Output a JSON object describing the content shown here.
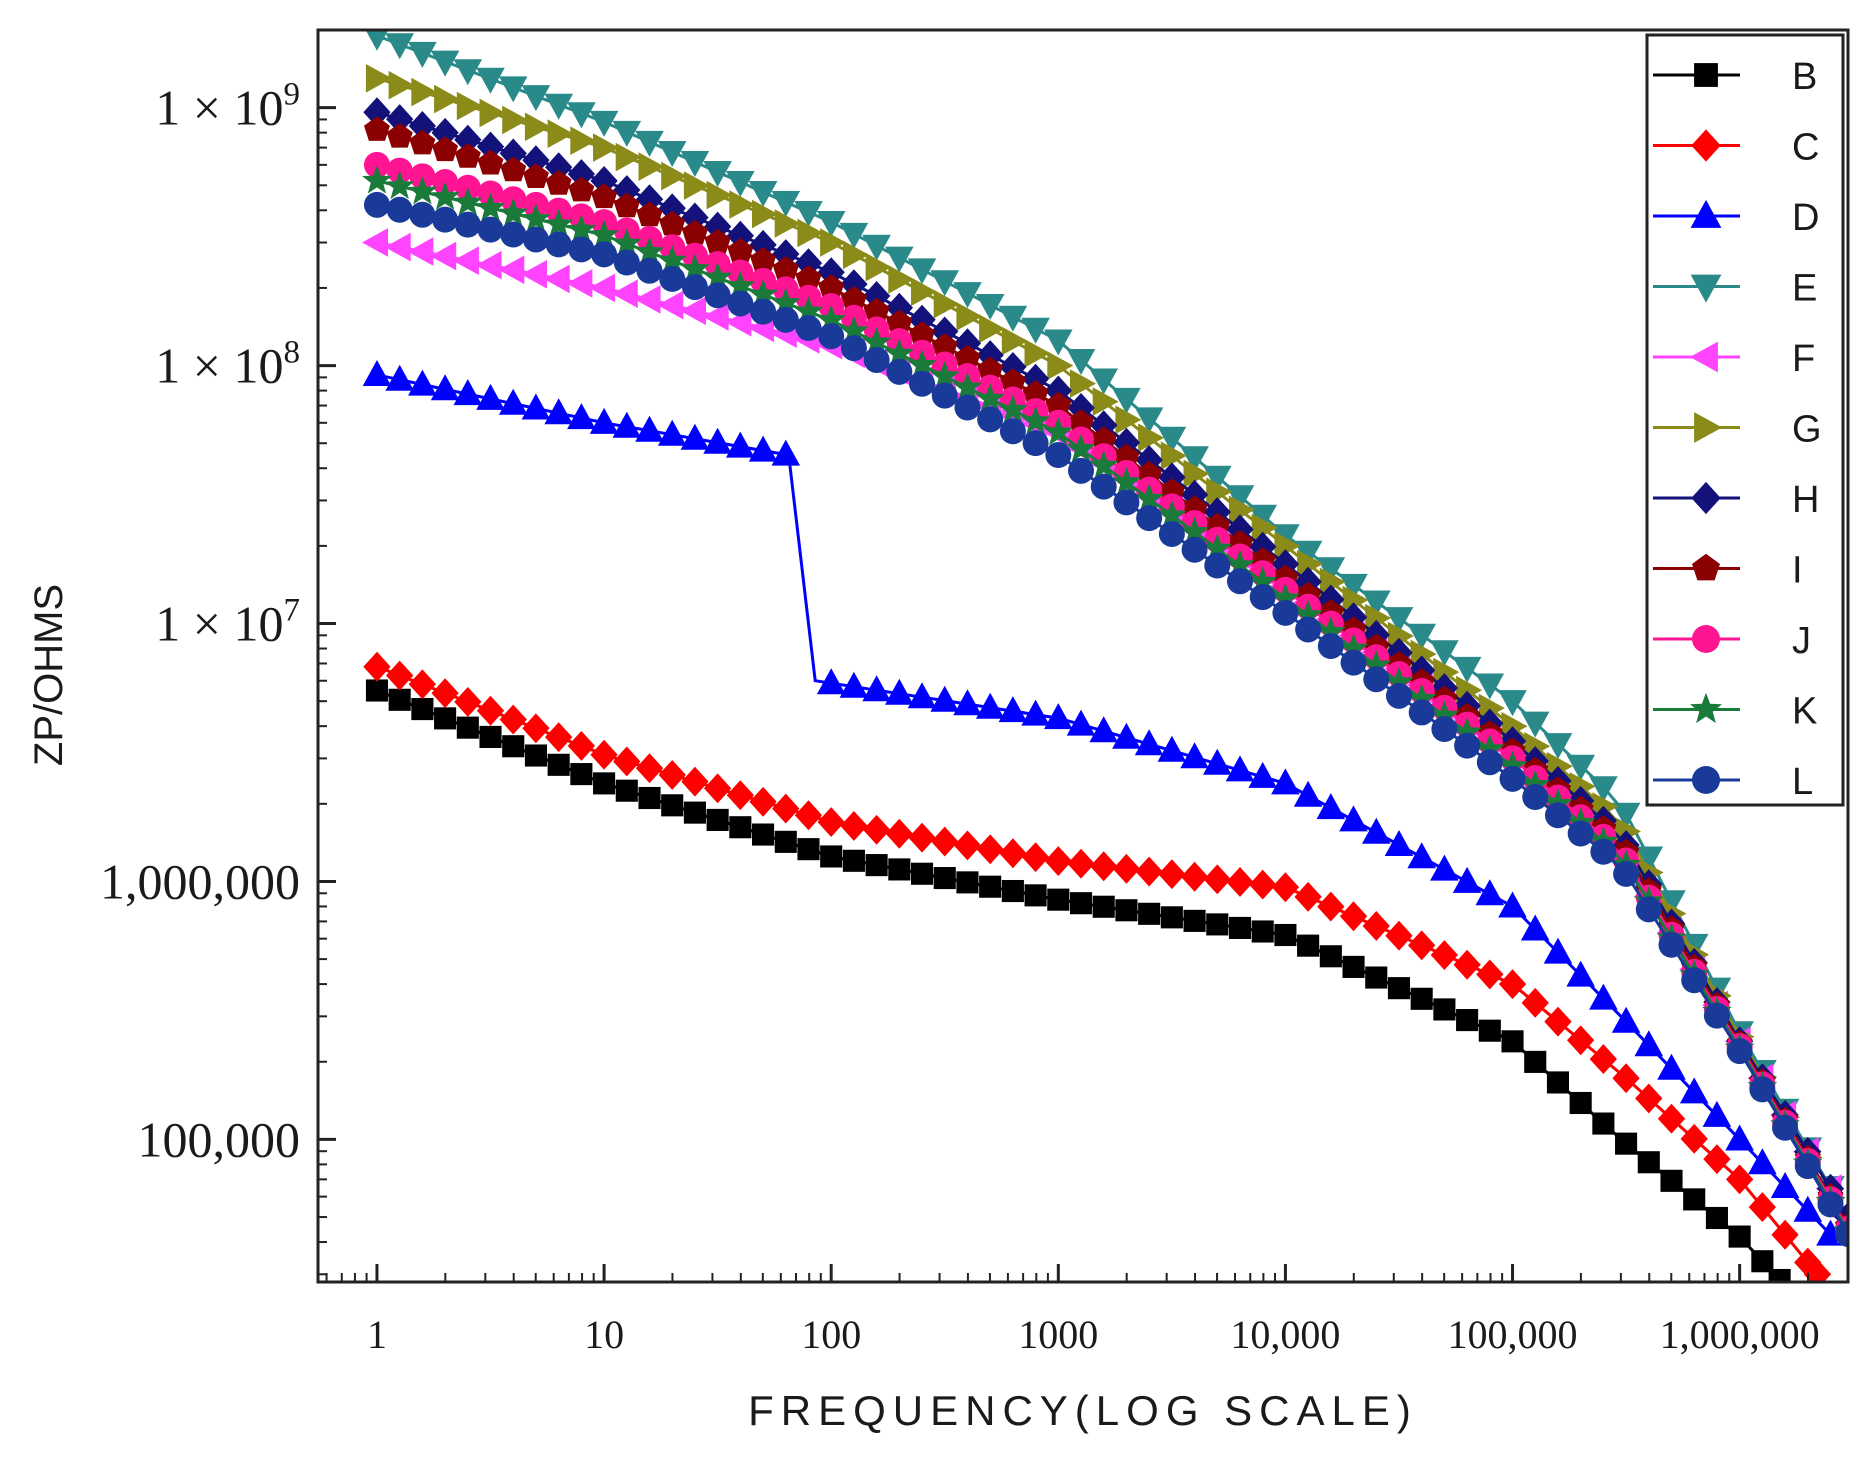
{
  "chart_data": {
    "type": "line",
    "xscale": "log",
    "yscale": "log",
    "xlabel": "FREQUENCY(LOG SCALE)",
    "ylabel": "ZP/OHMS",
    "xlim": [
      0.55,
      3000000
    ],
    "ylim": [
      28000,
      2000000000
    ],
    "x_ticks": [
      {
        "value": 1,
        "label": "1"
      },
      {
        "value": 10,
        "label": "10"
      },
      {
        "value": 100,
        "label": "100"
      },
      {
        "value": 1000,
        "label": "1000"
      },
      {
        "value": 10000,
        "label": "10,000"
      },
      {
        "value": 100000,
        "label": "100,000"
      },
      {
        "value": 1000000,
        "label": "1,000,000"
      }
    ],
    "y_ticks": [
      {
        "value": 100000,
        "label": "100,000"
      },
      {
        "value": 1000000,
        "label": "1,000,000"
      },
      {
        "value": 10000000,
        "label": "1 × 10",
        "exp": "7"
      },
      {
        "value": 100000000,
        "label": "1 × 10",
        "exp": "8"
      },
      {
        "value": 1000000000,
        "label": "1 × 10",
        "exp": "9"
      }
    ],
    "legend_position": "top-right",
    "series": [
      {
        "name": "B",
        "color": "#000000",
        "marker": "square",
        "points": [
          [
            1,
            5500000
          ],
          [
            10,
            2400000
          ],
          [
            100,
            1250000
          ],
          [
            1000,
            850000
          ],
          [
            10000,
            620000
          ],
          [
            100000,
            240000
          ],
          [
            300000,
            100000
          ],
          [
            1000000,
            42000
          ],
          [
            1500000,
            28500
          ]
        ]
      },
      {
        "name": "C",
        "color": "#ff0000",
        "marker": "diamond",
        "points": [
          [
            1,
            6800000
          ],
          [
            10,
            3100000
          ],
          [
            100,
            1700000
          ],
          [
            1000,
            1200000
          ],
          [
            10000,
            950000
          ],
          [
            100000,
            400000
          ],
          [
            300000,
            180000
          ],
          [
            1000000,
            70000
          ],
          [
            2200000,
            30000
          ]
        ]
      },
      {
        "name": "D",
        "color": "#0000ff",
        "marker": "triangle-up",
        "points": [
          [
            1,
            92000000
          ],
          [
            10,
            60000000
          ],
          [
            65,
            45000000
          ],
          [
            85,
            6000000
          ],
          [
            1000,
            4300000
          ],
          [
            10000,
            2400000
          ],
          [
            100000,
            800000
          ],
          [
            300000,
            300000
          ],
          [
            1000000,
            100000
          ],
          [
            2700000,
            40000
          ]
        ]
      },
      {
        "name": "E",
        "color": "#2a8a8a",
        "marker": "triangle-down",
        "points": [
          [
            1,
            1900000000
          ],
          [
            10,
            880000000
          ],
          [
            100,
            360000000
          ],
          [
            1000,
            125000000
          ],
          [
            10000,
            22000000
          ],
          [
            100000,
            5000000
          ],
          [
            300000,
            2000000
          ],
          [
            1000000,
            260000
          ],
          [
            3000000,
            50000
          ]
        ]
      },
      {
        "name": "F",
        "color": "#ff44ff",
        "marker": "triangle-left",
        "points": [
          [
            1,
            300000000
          ],
          [
            10,
            200000000
          ],
          [
            100,
            120000000
          ],
          [
            1000,
            55000000
          ],
          [
            10000,
            14000000
          ],
          [
            100000,
            3200000
          ],
          [
            300000,
            1300000
          ],
          [
            1000000,
            240000
          ],
          [
            3000000,
            50000
          ]
        ]
      },
      {
        "name": "G",
        "color": "#8b8b1a",
        "marker": "triangle-right",
        "points": [
          [
            1,
            1300000000
          ],
          [
            10,
            700000000
          ],
          [
            100,
            300000000
          ],
          [
            1000,
            100000000
          ],
          [
            10000,
            20000000
          ],
          [
            100000,
            4000000
          ],
          [
            300000,
            1700000
          ],
          [
            1000000,
            250000
          ],
          [
            3000000,
            45000
          ]
        ]
      },
      {
        "name": "H",
        "color": "#12127a",
        "marker": "diamond",
        "points": [
          [
            1,
            960000000
          ],
          [
            10,
            520000000
          ],
          [
            100,
            230000000
          ],
          [
            1000,
            80000000
          ],
          [
            10000,
            17000000
          ],
          [
            100000,
            3500000
          ],
          [
            300000,
            1500000
          ],
          [
            1000000,
            240000
          ],
          [
            3000000,
            50000
          ]
        ]
      },
      {
        "name": "I",
        "color": "#8b0000",
        "marker": "pentagon",
        "points": [
          [
            1,
            820000000
          ],
          [
            10,
            450000000
          ],
          [
            100,
            200000000
          ],
          [
            1000,
            70000000
          ],
          [
            10000,
            15000000
          ],
          [
            100000,
            3200000
          ],
          [
            300000,
            1400000
          ],
          [
            1000000,
            235000
          ],
          [
            3000000,
            46000
          ]
        ]
      },
      {
        "name": "J",
        "color": "#ff1493",
        "marker": "circle",
        "points": [
          [
            1,
            600000000
          ],
          [
            10,
            360000000
          ],
          [
            100,
            170000000
          ],
          [
            1000,
            60000000
          ],
          [
            10000,
            13500000
          ],
          [
            100000,
            3000000
          ],
          [
            300000,
            1300000
          ],
          [
            1000000,
            230000
          ],
          [
            3000000,
            45000
          ]
        ]
      },
      {
        "name": "K",
        "color": "#1a7a3a",
        "marker": "star",
        "points": [
          [
            1,
            520000000
          ],
          [
            10,
            320000000
          ],
          [
            100,
            150000000
          ],
          [
            1000,
            55000000
          ],
          [
            10000,
            12500000
          ],
          [
            100000,
            2800000
          ],
          [
            300000,
            1250000
          ],
          [
            1000000,
            225000
          ],
          [
            3000000,
            44000
          ]
        ]
      },
      {
        "name": "L",
        "color": "#1a3a9a",
        "marker": "circle",
        "points": [
          [
            1,
            420000000
          ],
          [
            10,
            270000000
          ],
          [
            100,
            130000000
          ],
          [
            1000,
            45000000
          ],
          [
            10000,
            11000000
          ],
          [
            100000,
            2500000
          ],
          [
            300000,
            1150000
          ],
          [
            1000000,
            220000
          ],
          [
            3000000,
            43000
          ]
        ]
      }
    ]
  }
}
